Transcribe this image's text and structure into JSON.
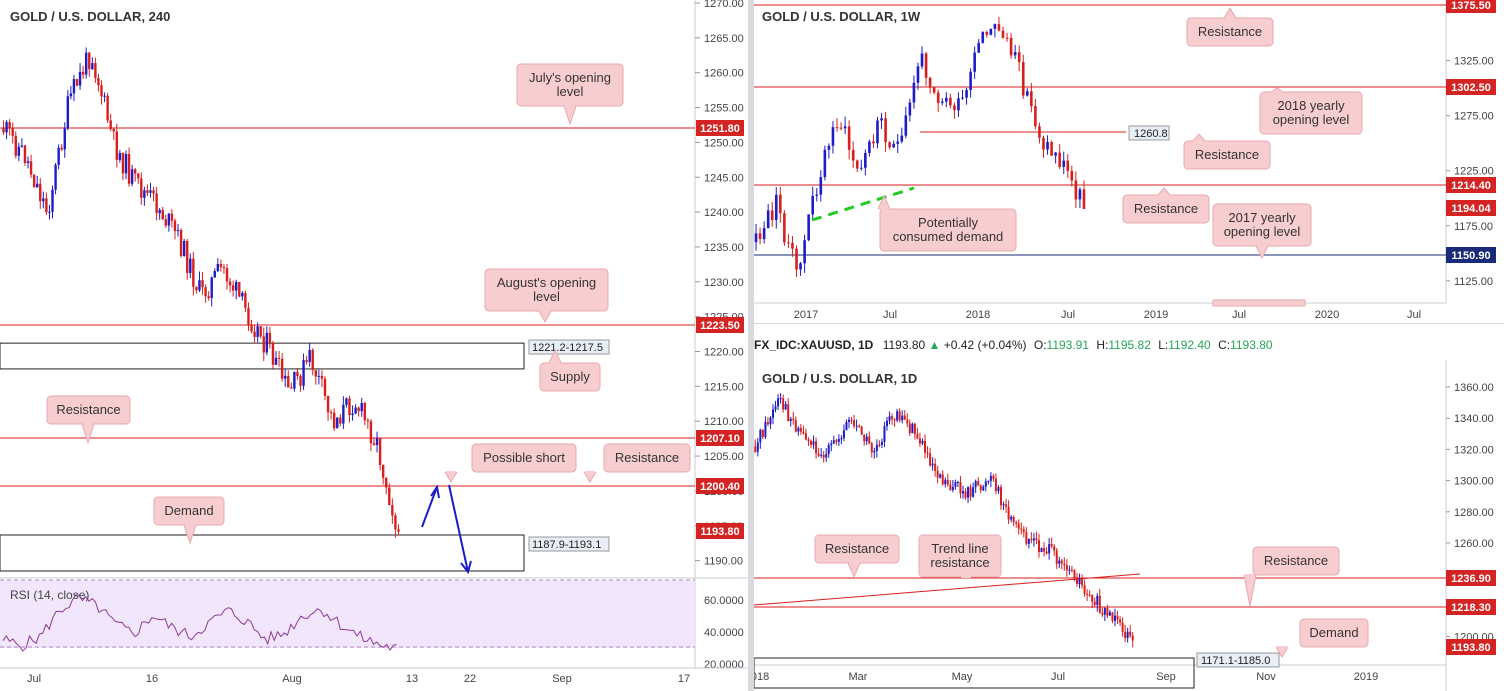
{
  "colors": {
    "bull": "#1c1cc8",
    "bear": "#d91e1e",
    "level": "#d91e1e",
    "label_bg": "#f8cdd0",
    "label_border": "#e7a9ae",
    "rsi_bg": "#f1e6fb",
    "rsi_line": "#8e3a96",
    "badge_red": "#d32323",
    "badge_navy": "#1a2a7a"
  },
  "panels": {
    "left": {
      "title": "GOLD / U.S. DOLLAR, 240",
      "price_ticks": [
        "1270.00",
        "1265.00",
        "1260.00",
        "1255.00",
        "1250.00",
        "1245.00",
        "1240.00",
        "1235.00",
        "1230.00",
        "1225.00",
        "1220.00",
        "1215.00",
        "1210.00",
        "1205.00",
        "1200.00",
        "1195.00",
        "1190.00"
      ],
      "time_labels": [
        "Jul",
        "16",
        "Aug",
        "13",
        "22",
        "Sep",
        "17"
      ],
      "badges": [
        "1251.80",
        "1223.50",
        "1207.10",
        "1200.40",
        "1193.80"
      ],
      "zone_labels": [
        "1221.2-1217.5",
        "1187.9-1193.1"
      ],
      "callouts": [
        "July's opening level",
        "August's opening level",
        "Supply",
        "Resistance",
        "Possible short",
        "Resistance",
        "Demand"
      ],
      "rsi": {
        "title": "RSI (14, close)",
        "ticks": [
          "60.0000",
          "40.0000",
          "20.0000"
        ]
      }
    },
    "weekly": {
      "title": "GOLD / U.S. DOLLAR, 1W",
      "price_ticks": [
        "1325.00",
        "1275.00",
        "1225.00",
        "1175.00",
        "1125.00"
      ],
      "time_labels": [
        "2017",
        "Jul",
        "2018",
        "Jul",
        "2019",
        "Jul",
        "2020",
        "Jul"
      ],
      "badges": [
        "1375.50",
        "1302.50",
        "1214.40",
        "1194.04",
        "1150.90"
      ],
      "level_label": "1260.8",
      "callouts": [
        "Resistance",
        "2018 yearly opening level",
        "Resistance",
        "Resistance",
        "2017 yearly opening level",
        "Potentially consumed demand"
      ]
    },
    "daily": {
      "infobar": {
        "symbol": "FX_IDC:XAUUSD, 1D",
        "price": "1193.80",
        "change": "+0.42 (+0.04%)",
        "o_label": "O:",
        "o": "1193.91",
        "h_label": "H:",
        "h": "1195.82",
        "l_label": "L:",
        "l": "1192.40",
        "c_label": "C:",
        "c": "1193.80"
      },
      "title": "GOLD / U.S. DOLLAR, 1D",
      "price_ticks": [
        "1360.00",
        "1340.00",
        "1320.00",
        "1300.00",
        "1280.00",
        "1260.00",
        "1240.00",
        "1220.00",
        "1200.00"
      ],
      "time_labels": [
        "018",
        "Mar",
        "May",
        "Jul",
        "Sep",
        "Nov",
        "2019"
      ],
      "badges": [
        "1236.90",
        "1218.30",
        "1193.80"
      ],
      "zone_label": "1171.1-1185.0",
      "callouts": [
        "Resistance",
        "Trend line resistance",
        "Resistance",
        "Demand"
      ]
    }
  },
  "chart_data": [
    {
      "type": "candlestick",
      "title": "GOLD / U.S. DOLLAR, 240",
      "ylim": [
        1186,
        1271
      ],
      "x": [
        "Jul",
        "16",
        "Aug",
        "13",
        "22",
        "Sep",
        "17"
      ],
      "path_points": [
        1252,
        1248,
        1240,
        1256,
        1263,
        1250,
        1244,
        1241,
        1236,
        1228,
        1232,
        1226,
        1221,
        1214,
        1219,
        1210,
        1213,
        1207,
        1194
      ],
      "levels": [
        1251.8,
        1223.5,
        1207.1,
        1200.4
      ],
      "zones": [
        [
          1217.5,
          1221.2
        ],
        [
          1187.9,
          1193.1
        ]
      ],
      "last_price": 1193.8,
      "rsi": {
        "ylim": [
          20,
          75
        ],
        "overbought": 70,
        "oversold": 30,
        "values": [
          36,
          32,
          38,
          55,
          63,
          58,
          46,
          40,
          52,
          44,
          38,
          47,
          55,
          48,
          36,
          40,
          52,
          56,
          46,
          38,
          33,
          30
        ]
      }
    },
    {
      "type": "candlestick",
      "title": "GOLD / U.S. DOLLAR, 1W",
      "ylim": [
        1105,
        1380
      ],
      "x": [
        "2017",
        "Jul",
        "2018",
        "Jul",
        "2019",
        "Jul",
        "2020",
        "Jul"
      ],
      "path_points": [
        1160,
        1195,
        1130,
        1215,
        1275,
        1220,
        1272,
        1240,
        1330,
        1290,
        1280,
        1345,
        1355,
        1305,
        1250,
        1230,
        1194
      ],
      "levels": [
        1375.5,
        1302.5,
        1260.8,
        1214.4,
        1150.9
      ],
      "last_price": 1194.04
    },
    {
      "type": "candlestick",
      "title": "GOLD / U.S. DOLLAR, 1D",
      "ylim": [
        1185,
        1372
      ],
      "x": [
        "018",
        "Mar",
        "May",
        "Jul",
        "Sep",
        "Nov",
        "2019"
      ],
      "path_points": [
        1322,
        1350,
        1330,
        1315,
        1340,
        1320,
        1345,
        1325,
        1300,
        1292,
        1300,
        1270,
        1258,
        1250,
        1230,
        1214,
        1194
      ],
      "levels": [
        1236.9,
        1218.3
      ],
      "zones": [
        [
          1171.1,
          1185.0
        ]
      ],
      "last_price": 1193.8
    }
  ]
}
